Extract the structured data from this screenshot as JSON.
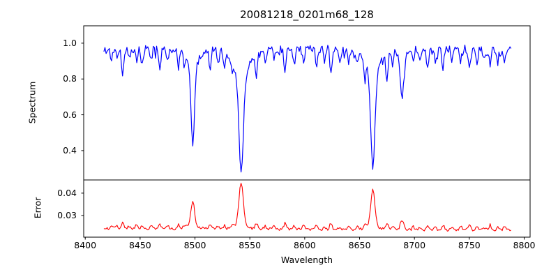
{
  "title": "20081218_0201m68_128",
  "chart_data": {
    "type": "line",
    "title": "20081218_0201m68_128",
    "xlabel": "Wavelength",
    "xlim": [
      8398.6,
      8805.4
    ],
    "x_data_range": [
      8417,
      8788
    ],
    "x_step": 1.0,
    "x_ticks": [
      8400,
      8450,
      8500,
      8550,
      8600,
      8650,
      8700,
      8750,
      8800
    ],
    "x_tick_labels": [
      "8400",
      "8450",
      "8500",
      "8550",
      "8600",
      "8650",
      "8700",
      "8750",
      "8800"
    ],
    "grid": false,
    "legend": "none",
    "panels": [
      {
        "name": "spectrum",
        "ylabel": "Spectrum",
        "ylim": [
          0.236,
          1.097
        ],
        "y_ticks": [
          0.4,
          0.6,
          0.8,
          1.0
        ],
        "y_tick_labels": [
          "0.4",
          "0.6",
          "0.8",
          "1.0"
        ],
        "line_color": "#0000ff"
      },
      {
        "name": "error",
        "ylabel": "Error",
        "ylim": [
          0.0203,
          0.0459
        ],
        "y_ticks": [
          0.03,
          0.04
        ],
        "y_tick_labels": [
          "0.03",
          "0.04"
        ],
        "line_color": "#ff0000"
      }
    ],
    "spectrum_series": {
      "color": "#0000ff",
      "continuum": 0.968,
      "noise_amplitude": 0.022,
      "seed": 20081218,
      "major_lines": [
        {
          "center": 8498.0,
          "min_flux": 0.43,
          "core_width": 1.5,
          "wing_width": 5.0,
          "wing_depth": 0.1
        },
        {
          "center": 8542.1,
          "min_flux": 0.28,
          "core_width": 2.0,
          "wing_width": 7.5,
          "wing_depth": 0.15
        },
        {
          "center": 8662.1,
          "min_flux": 0.31,
          "core_width": 1.9,
          "wing_width": 7.0,
          "wing_depth": 0.13
        },
        {
          "center": 8688.6,
          "min_flux": 0.69,
          "core_width": 1.5,
          "wing_width": 3.5,
          "wing_depth": 0.06
        }
      ],
      "minor_lines": [
        {
          "center": 8424,
          "min_flux": 0.9
        },
        {
          "center": 8429,
          "min_flux": 0.92
        },
        {
          "center": 8434,
          "min_flux": 0.82
        },
        {
          "center": 8440,
          "min_flux": 0.91
        },
        {
          "center": 8447,
          "min_flux": 0.88
        },
        {
          "center": 8452,
          "min_flux": 0.9
        },
        {
          "center": 8460,
          "min_flux": 0.91
        },
        {
          "center": 8468,
          "min_flux": 0.86
        },
        {
          "center": 8475,
          "min_flux": 0.89
        },
        {
          "center": 8485,
          "min_flux": 0.88
        },
        {
          "center": 8490,
          "min_flux": 0.91
        },
        {
          "center": 8514,
          "min_flux": 0.87
        },
        {
          "center": 8521,
          "min_flux": 0.91
        },
        {
          "center": 8527,
          "min_flux": 0.89
        },
        {
          "center": 8534,
          "min_flux": 0.9
        },
        {
          "center": 8556,
          "min_flux": 0.84
        },
        {
          "center": 8564,
          "min_flux": 0.9
        },
        {
          "center": 8572,
          "min_flux": 0.91
        },
        {
          "center": 8582,
          "min_flux": 0.83
        },
        {
          "center": 8590,
          "min_flux": 0.9
        },
        {
          "center": 8599,
          "min_flux": 0.88
        },
        {
          "center": 8611,
          "min_flux": 0.87
        },
        {
          "center": 8618,
          "min_flux": 0.9
        },
        {
          "center": 8624,
          "min_flux": 0.82
        },
        {
          "center": 8632,
          "min_flux": 0.9
        },
        {
          "center": 8640,
          "min_flux": 0.89
        },
        {
          "center": 8648,
          "min_flux": 0.9
        },
        {
          "center": 8655,
          "min_flux": 0.88
        },
        {
          "center": 8675,
          "min_flux": 0.82
        },
        {
          "center": 8680,
          "min_flux": 0.89
        },
        {
          "center": 8699,
          "min_flux": 0.9
        },
        {
          "center": 8705,
          "min_flux": 0.91
        },
        {
          "center": 8712,
          "min_flux": 0.85
        },
        {
          "center": 8719,
          "min_flux": 0.9
        },
        {
          "center": 8726,
          "min_flux": 0.86
        },
        {
          "center": 8734,
          "min_flux": 0.91
        },
        {
          "center": 8742,
          "min_flux": 0.88
        },
        {
          "center": 8750,
          "min_flux": 0.86
        },
        {
          "center": 8757,
          "min_flux": 0.89
        },
        {
          "center": 8764,
          "min_flux": 0.91
        },
        {
          "center": 8769,
          "min_flux": 0.85
        },
        {
          "center": 8776,
          "min_flux": 0.9
        },
        {
          "center": 8782,
          "min_flux": 0.89
        }
      ]
    },
    "error_series": {
      "color": "#ff0000",
      "baseline": 0.0242,
      "baseline_slope": -2e-06,
      "noise_amplitude": 0.0006,
      "seed": 201,
      "peaks": [
        {
          "center": 8498.0,
          "height": 0.0105,
          "width": 1.6
        },
        {
          "center": 8542.1,
          "height": 0.019,
          "width": 2.0
        },
        {
          "center": 8662.1,
          "height": 0.0158,
          "width": 1.9
        },
        {
          "center": 8688.6,
          "height": 0.0044,
          "width": 1.5
        }
      ],
      "wing_height": 0.0018,
      "wing_width": 5.0,
      "minor_bump_scale": 0.02
    }
  }
}
